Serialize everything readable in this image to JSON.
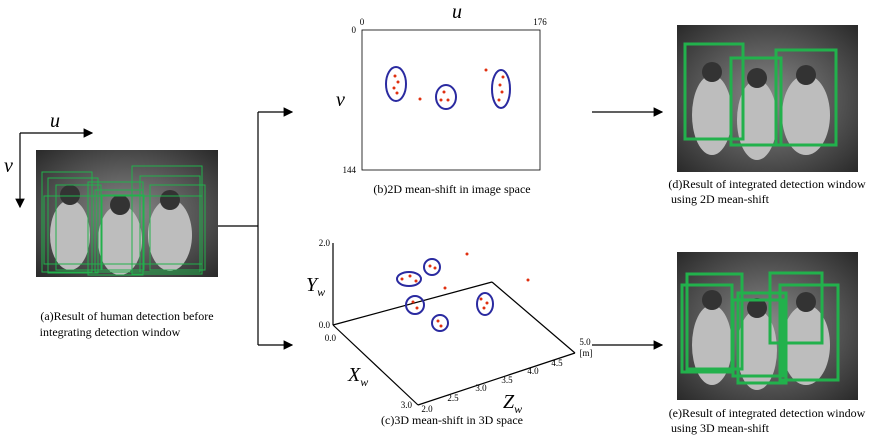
{
  "left_axes": {
    "u": "u",
    "v": "v"
  },
  "panel_a": {
    "caption": [
      "(a)Result of human detection before",
      "integrating detection window"
    ]
  },
  "panel_b": {
    "axis_u": "u",
    "axis_v": "v",
    "u_ticks": [
      "0",
      "176"
    ],
    "v_ticks": [
      "0",
      "144"
    ],
    "caption": [
      "(b)2D mean-shift in image space"
    ]
  },
  "panel_c": {
    "y_axis": {
      "main": "Y",
      "sub": "w"
    },
    "x_axis": {
      "main": "X",
      "sub": "w"
    },
    "z_axis": {
      "main": "Z",
      "sub": "w"
    },
    "y_ticks": [
      "2.0",
      "0.0"
    ],
    "x_ticks": [
      "0.0",
      "3.0"
    ],
    "z_ticks": [
      "2.0",
      "2.5",
      "3.0",
      "3.5",
      "4.0",
      "4.5",
      "5.0"
    ],
    "unit": "[m]",
    "caption": [
      "(c)3D mean-shift in 3D space"
    ]
  },
  "panel_d": {
    "caption": [
      "(d)Result of integrated detection window",
      "using 2D mean-shift"
    ]
  },
  "panel_e": {
    "caption": [
      "(e)Result of integrated detection window",
      "using 3D mean-shift"
    ]
  }
}
